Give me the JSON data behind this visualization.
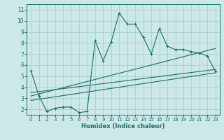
{
  "xlabel": "Humidex (Indice chaleur)",
  "bg_color": "#cce8e8",
  "grid_color": "#aacece",
  "line_color": "#1a6e64",
  "xlim": [
    -0.5,
    23.5
  ],
  "ylim": [
    1.5,
    11.5
  ],
  "xticks": [
    0,
    1,
    2,
    3,
    4,
    5,
    6,
    7,
    8,
    9,
    10,
    11,
    12,
    13,
    14,
    15,
    16,
    17,
    18,
    19,
    20,
    21,
    22,
    23
  ],
  "yticks": [
    2,
    3,
    4,
    5,
    6,
    7,
    8,
    9,
    10,
    11
  ],
  "main_x": [
    0,
    1,
    2,
    3,
    4,
    5,
    6,
    7,
    8,
    9,
    10,
    11,
    12,
    13,
    14,
    15,
    16,
    17,
    18,
    19,
    20,
    21,
    22,
    23
  ],
  "main_y": [
    5.5,
    3.2,
    1.8,
    2.1,
    2.2,
    2.2,
    1.7,
    1.8,
    8.2,
    6.4,
    8.1,
    10.7,
    9.7,
    9.7,
    8.5,
    7.0,
    9.3,
    7.7,
    7.4,
    7.4,
    7.2,
    7.1,
    6.8,
    5.4
  ],
  "line1_x": [
    0,
    23
  ],
  "line1_y": [
    2.8,
    5.3
  ],
  "line2_x": [
    0,
    23
  ],
  "line2_y": [
    3.2,
    7.5
  ],
  "line3_x": [
    0,
    23
  ],
  "line3_y": [
    3.5,
    5.6
  ]
}
